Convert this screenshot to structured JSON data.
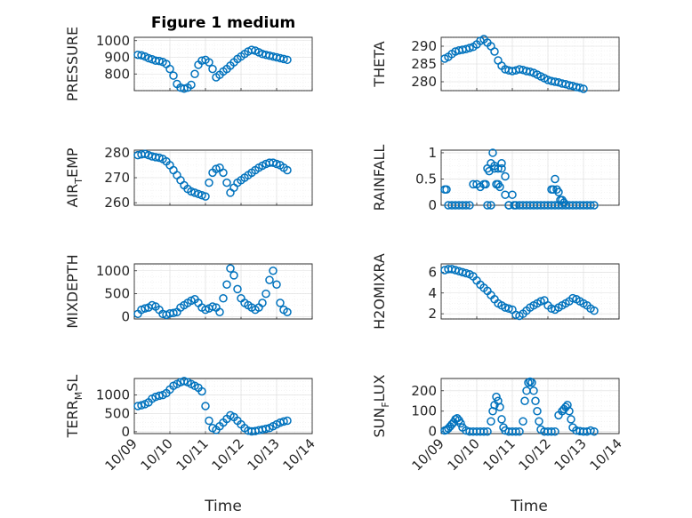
{
  "figure": {
    "title": "Figure 1 medium",
    "marker_color": "#0072BD",
    "xlabel": "Time",
    "x_tick_labels": [
      "10/09",
      "10/10",
      "10/11",
      "10/12",
      "10/13",
      "10/14"
    ]
  },
  "chart_data": [
    {
      "type": "scatter",
      "marker": "circle",
      "ylabel": "PRESSURE",
      "xlim": [
        0,
        5
      ],
      "ylim": [
        700,
        1020
      ],
      "yticks": [
        800,
        900,
        1000
      ],
      "ytick_labels": [
        "800",
        "900",
        "1000"
      ],
      "show_x_tick_labels": false,
      "x": [
        0.1,
        0.2,
        0.3,
        0.4,
        0.5,
        0.6,
        0.7,
        0.8,
        0.9,
        1.0,
        1.1,
        1.2,
        1.3,
        1.4,
        1.5,
        1.6,
        1.7,
        1.8,
        1.9,
        2.0,
        2.1,
        2.2,
        2.3,
        2.4,
        2.5,
        2.6,
        2.7,
        2.8,
        2.9,
        3.0,
        3.1,
        3.2,
        3.3,
        3.4,
        3.5,
        3.6,
        3.7,
        3.8,
        3.9,
        4.0,
        4.1,
        4.2,
        4.3
      ],
      "y": [
        915,
        912,
        905,
        895,
        888,
        880,
        878,
        872,
        860,
        830,
        790,
        740,
        718,
        712,
        718,
        735,
        800,
        855,
        880,
        885,
        870,
        830,
        780,
        795,
        815,
        830,
        850,
        870,
        890,
        905,
        920,
        935,
        945,
        940,
        930,
        920,
        915,
        910,
        905,
        900,
        895,
        890,
        885
      ]
    },
    {
      "type": "scatter",
      "marker": "circle",
      "ylabel": "THETA",
      "xlim": [
        0,
        5
      ],
      "ylim": [
        277.5,
        292.5
      ],
      "yticks": [
        280,
        285,
        290
      ],
      "ytick_labels": [
        "280",
        "285",
        "290"
      ],
      "show_x_tick_labels": false,
      "x": [
        0.1,
        0.2,
        0.3,
        0.4,
        0.5,
        0.6,
        0.7,
        0.8,
        0.9,
        1.0,
        1.1,
        1.2,
        1.3,
        1.4,
        1.5,
        1.6,
        1.7,
        1.8,
        1.9,
        2.0,
        2.1,
        2.2,
        2.3,
        2.4,
        2.5,
        2.6,
        2.7,
        2.8,
        2.9,
        3.0,
        3.1,
        3.2,
        3.3,
        3.4,
        3.5,
        3.6,
        3.7,
        3.8,
        3.9,
        4.0
      ],
      "y": [
        286.5,
        287,
        287.8,
        288.5,
        288.8,
        289,
        289.2,
        289.5,
        289.8,
        290.5,
        291.5,
        292,
        291,
        290,
        288.5,
        286,
        284.5,
        283.5,
        283.2,
        283,
        283.2,
        283.5,
        283.3,
        283,
        282.8,
        282.5,
        282,
        281.5,
        281,
        280.5,
        280.2,
        280,
        279.8,
        279.5,
        279.3,
        279,
        278.8,
        278.5,
        278.3,
        278
      ]
    },
    {
      "type": "scatter",
      "marker": "circle",
      "ylabel": "AIR_TEMP",
      "ylabel_main": "AIR",
      "ylabel_sub": "T",
      "ylabel_rest": "EMP",
      "xlim": [
        0,
        5
      ],
      "ylim": [
        259,
        281
      ],
      "yticks": [
        260,
        270,
        280
      ],
      "ytick_labels": [
        "260",
        "270",
        "280"
      ],
      "show_x_tick_labels": false,
      "x": [
        0.1,
        0.2,
        0.3,
        0.4,
        0.5,
        0.6,
        0.7,
        0.8,
        0.9,
        1.0,
        1.1,
        1.2,
        1.3,
        1.4,
        1.5,
        1.6,
        1.7,
        1.8,
        1.9,
        2.0,
        2.1,
        2.2,
        2.3,
        2.4,
        2.5,
        2.6,
        2.7,
        2.8,
        2.9,
        3.0,
        3.1,
        3.2,
        3.3,
        3.4,
        3.5,
        3.6,
        3.7,
        3.8,
        3.9,
        4.0,
        4.1,
        4.2,
        4.3
      ],
      "y": [
        279,
        279.3,
        279.5,
        279,
        278.5,
        278.2,
        278,
        277.5,
        276.5,
        275,
        273,
        271,
        269,
        267,
        265.5,
        264.5,
        264,
        263.5,
        263,
        262.5,
        268,
        272,
        273.5,
        274,
        272,
        268,
        264,
        266,
        268,
        269,
        270,
        271,
        272,
        273,
        274,
        274.8,
        275.5,
        276,
        276,
        275.5,
        275,
        274,
        273
      ]
    },
    {
      "type": "scatter",
      "marker": "circle",
      "ylabel": "RAINFALL",
      "xlim": [
        0,
        5
      ],
      "ylim": [
        0,
        1.05
      ],
      "yticks": [
        0,
        0.5,
        1
      ],
      "ytick_labels": [
        "0",
        "0.5",
        "1"
      ],
      "show_x_tick_labels": false,
      "x": [
        0.1,
        0.15,
        0.2,
        0.3,
        0.4,
        0.5,
        0.6,
        0.7,
        0.8,
        0.9,
        1.0,
        1.1,
        1.2,
        1.3,
        1.4,
        1.5,
        1.6,
        1.7,
        1.8,
        1.9,
        2.0,
        2.1,
        2.2,
        2.3,
        2.4,
        2.5,
        2.6,
        2.7,
        2.8,
        2.9,
        3.0,
        3.1,
        3.2,
        3.3,
        3.4,
        3.5,
        3.6,
        3.7,
        3.8,
        3.9,
        4.0,
        4.1,
        4.2,
        4.3,
        1.25,
        1.3,
        1.35,
        1.4,
        1.45,
        1.5,
        1.55,
        1.6,
        1.65,
        1.7,
        1.8,
        1.9,
        2.05,
        3.1,
        3.15,
        3.2,
        3.25,
        3.3,
        3.35,
        3.4,
        3.45
      ],
      "y": [
        0.3,
        0.3,
        0,
        0,
        0,
        0,
        0,
        0,
        0,
        0.4,
        0.4,
        0.35,
        0.4,
        0,
        0,
        0.75,
        0.7,
        0.8,
        0.55,
        0,
        0.2,
        0,
        0,
        0,
        0,
        0,
        0,
        0,
        0,
        0,
        0,
        0,
        0,
        0,
        0,
        0,
        0,
        0,
        0,
        0,
        0,
        0,
        0,
        0,
        0.4,
        0.7,
        0.65,
        0.8,
        1.0,
        0.7,
        0.4,
        0.4,
        0.35,
        0.7,
        0.2,
        0,
        0,
        0.3,
        0.3,
        0.5,
        0.3,
        0.25,
        0.1,
        0.1,
        0.05
      ]
    },
    {
      "type": "scatter",
      "marker": "circle",
      "ylabel": "MIXDEPTH",
      "xlim": [
        0,
        5
      ],
      "ylim": [
        -50,
        1150
      ],
      "yticks": [
        0,
        500,
        1000
      ],
      "ytick_labels": [
        "0",
        "500",
        "1000"
      ],
      "show_x_tick_labels": false,
      "x": [
        0.1,
        0.2,
        0.3,
        0.4,
        0.5,
        0.6,
        0.7,
        0.8,
        0.9,
        1.0,
        1.1,
        1.2,
        1.3,
        1.4,
        1.5,
        1.6,
        1.7,
        1.8,
        1.9,
        2.0,
        2.1,
        2.2,
        2.3,
        2.4,
        2.5,
        2.6,
        2.7,
        2.8,
        2.9,
        3.0,
        3.1,
        3.2,
        3.3,
        3.4,
        3.5,
        3.6,
        3.7,
        3.8,
        3.9,
        4.0,
        4.1,
        4.2,
        4.3
      ],
      "y": [
        60,
        150,
        180,
        200,
        250,
        220,
        150,
        60,
        40,
        70,
        80,
        100,
        200,
        250,
        300,
        350,
        380,
        300,
        200,
        150,
        180,
        220,
        200,
        100,
        400,
        700,
        1050,
        900,
        600,
        400,
        300,
        250,
        200,
        150,
        200,
        300,
        500,
        800,
        1000,
        700,
        300,
        150,
        100
      ]
    },
    {
      "type": "scatter",
      "marker": "circle",
      "ylabel": "H2OMIXRA",
      "xlim": [
        0,
        5
      ],
      "ylim": [
        1.5,
        6.8
      ],
      "yticks": [
        2,
        4,
        6
      ],
      "ytick_labels": [
        "2",
        "4",
        "6"
      ],
      "show_x_tick_labels": false,
      "x": [
        0.1,
        0.2,
        0.3,
        0.4,
        0.5,
        0.6,
        0.7,
        0.8,
        0.9,
        1.0,
        1.1,
        1.2,
        1.3,
        1.4,
        1.5,
        1.6,
        1.7,
        1.8,
        1.9,
        2.0,
        2.1,
        2.2,
        2.3,
        2.4,
        2.5,
        2.6,
        2.7,
        2.8,
        2.9,
        3.0,
        3.1,
        3.2,
        3.3,
        3.4,
        3.5,
        3.6,
        3.7,
        3.8,
        3.9,
        4.0,
        4.1,
        4.2,
        4.3
      ],
      "y": [
        6.2,
        6.3,
        6.3,
        6.2,
        6.1,
        6.0,
        5.9,
        5.8,
        5.6,
        5.2,
        4.8,
        4.5,
        4.2,
        3.8,
        3.4,
        3.0,
        2.8,
        2.6,
        2.5,
        2.4,
        1.9,
        1.8,
        2.0,
        2.3,
        2.6,
        2.8,
        3.0,
        3.2,
        3.3,
        2.8,
        2.5,
        2.4,
        2.6,
        2.8,
        3.0,
        3.2,
        3.5,
        3.4,
        3.2,
        3.0,
        2.8,
        2.5,
        2.3
      ]
    },
    {
      "type": "scatter",
      "marker": "circle",
      "ylabel": "TERR_MSL",
      "ylabel_main": "TERR",
      "ylabel_sub": "M",
      "ylabel_rest": "SL",
      "xlim": [
        0,
        5
      ],
      "ylim": [
        -50,
        1450
      ],
      "yticks": [
        0,
        500,
        1000
      ],
      "ytick_labels": [
        "0",
        "500",
        "1000"
      ],
      "show_x_tick_labels": true,
      "x": [
        0.1,
        0.2,
        0.3,
        0.4,
        0.5,
        0.6,
        0.7,
        0.8,
        0.9,
        1.0,
        1.1,
        1.2,
        1.3,
        1.4,
        1.5,
        1.6,
        1.7,
        1.8,
        1.9,
        2.0,
        2.1,
        2.2,
        2.3,
        2.4,
        2.5,
        2.6,
        2.7,
        2.8,
        2.9,
        3.0,
        3.1,
        3.2,
        3.3,
        3.4,
        3.5,
        3.6,
        3.7,
        3.8,
        3.9,
        4.0,
        4.1,
        4.2,
        4.3
      ],
      "y": [
        700,
        720,
        750,
        800,
        900,
        950,
        980,
        1000,
        1050,
        1150,
        1250,
        1300,
        1350,
        1380,
        1350,
        1300,
        1250,
        1200,
        1100,
        700,
        300,
        100,
        50,
        150,
        250,
        350,
        450,
        400,
        300,
        200,
        100,
        30,
        10,
        20,
        40,
        60,
        80,
        100,
        150,
        200,
        250,
        280,
        300
      ]
    },
    {
      "type": "scatter",
      "marker": "circle",
      "ylabel": "SUN_FLUX",
      "ylabel_main": "SUN",
      "ylabel_sub": "F",
      "ylabel_rest": "LUX",
      "xlim": [
        0,
        5
      ],
      "ylim": [
        -10,
        260
      ],
      "yticks": [
        0,
        100,
        200
      ],
      "ytick_labels": [
        "0",
        "100",
        "200"
      ],
      "show_x_tick_labels": true,
      "x": [
        0.1,
        0.15,
        0.2,
        0.25,
        0.3,
        0.35,
        0.4,
        0.45,
        0.5,
        0.55,
        0.6,
        0.7,
        0.8,
        0.9,
        1.0,
        1.1,
        1.2,
        1.3,
        1.4,
        1.45,
        1.5,
        1.55,
        1.6,
        1.65,
        1.7,
        1.75,
        1.8,
        1.9,
        2.0,
        2.1,
        2.2,
        2.3,
        2.35,
        2.4,
        2.45,
        2.5,
        2.55,
        2.6,
        2.65,
        2.7,
        2.75,
        2.8,
        2.9,
        3.0,
        3.1,
        3.2,
        3.3,
        3.4,
        3.45,
        3.5,
        3.55,
        3.6,
        3.65,
        3.7,
        3.8,
        3.9,
        4.0,
        4.1,
        4.2,
        4.3
      ],
      "y": [
        5,
        8,
        15,
        25,
        35,
        45,
        60,
        65,
        55,
        40,
        20,
        5,
        0,
        0,
        0,
        0,
        0,
        0,
        50,
        100,
        130,
        170,
        150,
        120,
        60,
        20,
        5,
        0,
        0,
        0,
        0,
        50,
        150,
        200,
        240,
        245,
        240,
        200,
        150,
        100,
        50,
        10,
        0,
        0,
        0,
        0,
        80,
        100,
        110,
        120,
        130,
        100,
        60,
        20,
        5,
        2,
        0,
        0,
        5,
        0
      ]
    }
  ]
}
